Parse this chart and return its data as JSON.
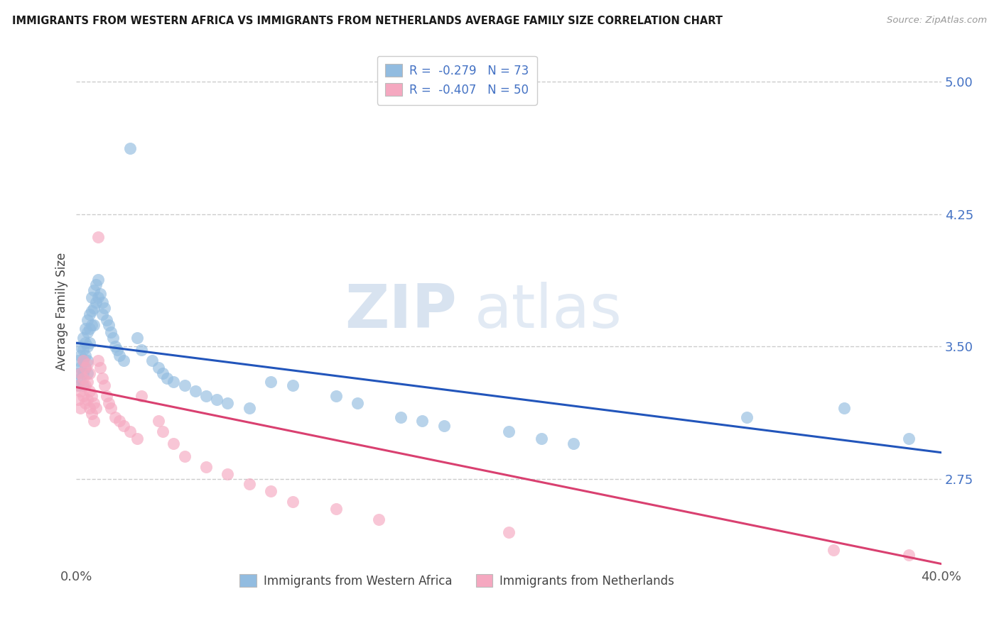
{
  "title": "IMMIGRANTS FROM WESTERN AFRICA VS IMMIGRANTS FROM NETHERLANDS AVERAGE FAMILY SIZE CORRELATION CHART",
  "source": "Source: ZipAtlas.com",
  "ylabel": "Average Family Size",
  "yticks": [
    2.75,
    3.5,
    4.25,
    5.0
  ],
  "ytick_labels": [
    "2.75",
    "3.50",
    "4.25",
    "5.00"
  ],
  "ytick_color": "#4472c4",
  "xlim": [
    0.0,
    0.4
  ],
  "ylim": [
    2.25,
    5.15
  ],
  "xtick_vals": [
    0.0,
    0.4
  ],
  "xtick_labels": [
    "0.0%",
    "40.0%"
  ],
  "legend_label1": "R =  -0.279   N = 73",
  "legend_label2": "R =  -0.407   N = 50",
  "legend_label1_short": "Immigrants from Western Africa",
  "legend_label2_short": "Immigrants from Netherlands",
  "color_blue": "#92bce0",
  "color_pink": "#f5a8c0",
  "trendline_blue": "#2255bb",
  "trendline_pink": "#d94070",
  "watermark_zip": "ZIP",
  "watermark_atlas": "atlas",
  "blue_trend_x0": 0.0,
  "blue_trend_x1": 0.4,
  "blue_trend_y0": 3.52,
  "blue_trend_y1": 2.9,
  "pink_trend_x0": 0.0,
  "pink_trend_x1": 0.4,
  "pink_trend_y0": 3.27,
  "pink_trend_y1": 2.27,
  "blue_x": [
    0.001,
    0.001,
    0.001,
    0.002,
    0.002,
    0.002,
    0.002,
    0.003,
    0.003,
    0.003,
    0.003,
    0.003,
    0.004,
    0.004,
    0.004,
    0.004,
    0.005,
    0.005,
    0.005,
    0.005,
    0.005,
    0.006,
    0.006,
    0.006,
    0.007,
    0.007,
    0.007,
    0.008,
    0.008,
    0.008,
    0.009,
    0.009,
    0.01,
    0.01,
    0.011,
    0.012,
    0.012,
    0.013,
    0.014,
    0.015,
    0.016,
    0.017,
    0.018,
    0.019,
    0.02,
    0.022,
    0.025,
    0.028,
    0.03,
    0.035,
    0.038,
    0.04,
    0.042,
    0.045,
    0.05,
    0.055,
    0.06,
    0.065,
    0.07,
    0.08,
    0.09,
    0.1,
    0.12,
    0.13,
    0.15,
    0.16,
    0.17,
    0.2,
    0.215,
    0.23,
    0.31,
    0.355,
    0.385
  ],
  "blue_y": [
    3.42,
    3.35,
    3.28,
    3.5,
    3.45,
    3.38,
    3.32,
    3.55,
    3.48,
    3.42,
    3.35,
    3.28,
    3.6,
    3.52,
    3.45,
    3.38,
    3.65,
    3.58,
    3.5,
    3.42,
    3.35,
    3.68,
    3.6,
    3.52,
    3.78,
    3.7,
    3.62,
    3.82,
    3.72,
    3.62,
    3.85,
    3.75,
    3.88,
    3.78,
    3.8,
    3.75,
    3.68,
    3.72,
    3.65,
    3.62,
    3.58,
    3.55,
    3.5,
    3.48,
    3.45,
    3.42,
    4.62,
    3.55,
    3.48,
    3.42,
    3.38,
    3.35,
    3.32,
    3.3,
    3.28,
    3.25,
    3.22,
    3.2,
    3.18,
    3.15,
    3.3,
    3.28,
    3.22,
    3.18,
    3.1,
    3.08,
    3.05,
    3.02,
    2.98,
    2.95,
    3.1,
    3.15,
    2.98
  ],
  "pink_x": [
    0.001,
    0.001,
    0.002,
    0.002,
    0.002,
    0.003,
    0.003,
    0.003,
    0.004,
    0.004,
    0.004,
    0.005,
    0.005,
    0.005,
    0.006,
    0.006,
    0.006,
    0.007,
    0.007,
    0.008,
    0.008,
    0.009,
    0.01,
    0.01,
    0.011,
    0.012,
    0.013,
    0.014,
    0.015,
    0.016,
    0.018,
    0.02,
    0.022,
    0.025,
    0.028,
    0.03,
    0.038,
    0.04,
    0.045,
    0.05,
    0.06,
    0.07,
    0.08,
    0.09,
    0.1,
    0.12,
    0.14,
    0.2,
    0.35,
    0.385
  ],
  "pink_y": [
    3.28,
    3.2,
    3.35,
    3.25,
    3.15,
    3.42,
    3.32,
    3.22,
    3.38,
    3.28,
    3.18,
    3.4,
    3.3,
    3.2,
    3.35,
    3.25,
    3.15,
    3.22,
    3.12,
    3.18,
    3.08,
    3.15,
    4.12,
    3.42,
    3.38,
    3.32,
    3.28,
    3.22,
    3.18,
    3.15,
    3.1,
    3.08,
    3.05,
    3.02,
    2.98,
    3.22,
    3.08,
    3.02,
    2.95,
    2.88,
    2.82,
    2.78,
    2.72,
    2.68,
    2.62,
    2.58,
    2.52,
    2.45,
    2.35,
    2.32
  ]
}
